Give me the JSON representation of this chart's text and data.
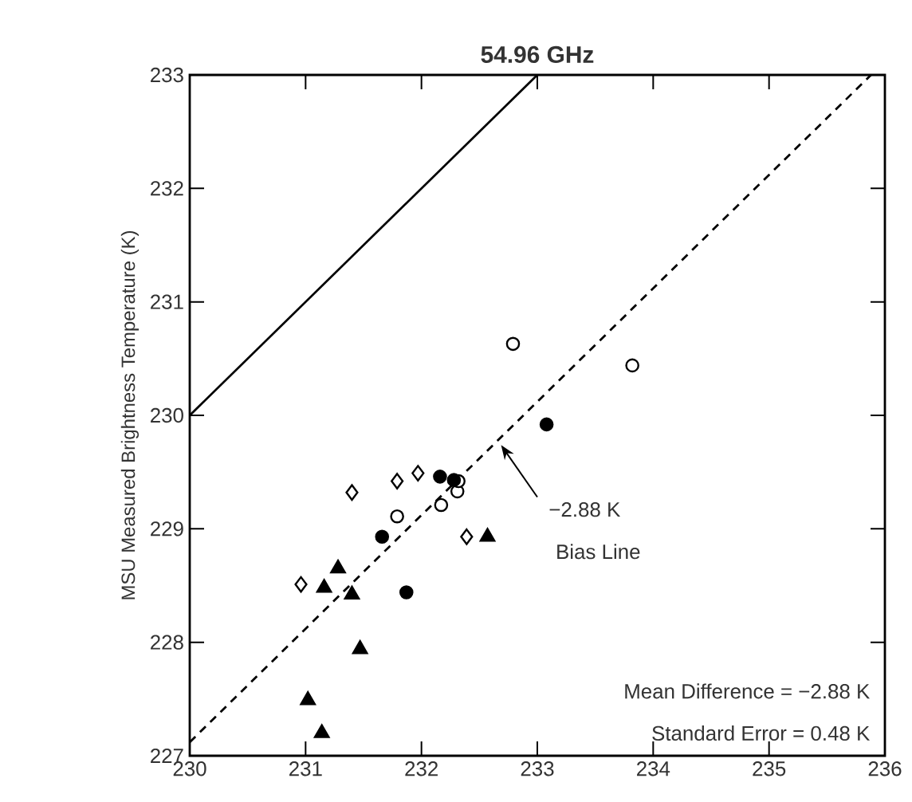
{
  "chart_data": {
    "type": "scatter",
    "title": "54.96 GHz",
    "ylabel": "MSU Measured Brightness Temperature (K)",
    "xlim": [
      230,
      236
    ],
    "ylim": [
      227,
      233
    ],
    "xticks": [
      230,
      231,
      232,
      233,
      234,
      235,
      236
    ],
    "yticks": [
      227,
      228,
      229,
      230,
      231,
      232,
      233
    ],
    "grid": false,
    "series": [
      {
        "color": "#ffffff",
        "marker": "circle",
        "x": [
          232.79,
          233.82,
          231.79,
          232.17,
          232.31,
          232.32
        ],
        "values": [
          230.63,
          230.44,
          229.11,
          229.21,
          229.33,
          229.42
        ]
      },
      {
        "color": "#000000",
        "marker": "circle",
        "x": [
          233.08,
          232.16,
          232.28,
          231.66,
          231.87
        ],
        "values": [
          229.92,
          229.46,
          229.43,
          228.93,
          228.44
        ]
      },
      {
        "color": "#ffffff",
        "marker": "diamond",
        "x": [
          231.4,
          231.79,
          231.97,
          232.39,
          230.96
        ],
        "values": [
          229.32,
          229.42,
          229.49,
          228.93,
          228.51
        ]
      },
      {
        "color": "#000000",
        "marker": "triangle",
        "x": [
          231.28,
          231.16,
          231.4,
          232.57,
          231.47,
          231.02,
          231.14
        ],
        "values": [
          228.65,
          228.48,
          228.42,
          228.93,
          227.94,
          227.49,
          227.2
        ]
      },
      {
        "type": "line",
        "color": "#000000",
        "line_style": "solid",
        "x": [
          230,
          233
        ],
        "values": [
          230,
          233
        ]
      },
      {
        "type": "line",
        "color": "#000000",
        "line_style": "dashed",
        "x": [
          230,
          235.88
        ],
        "values": [
          227.12,
          233
        ]
      }
    ],
    "annotations": [
      "−2.88 K",
      "Bias Line",
      "Mean Difference = −2.88 K",
      "Standard Error = 0.48 K"
    ]
  }
}
